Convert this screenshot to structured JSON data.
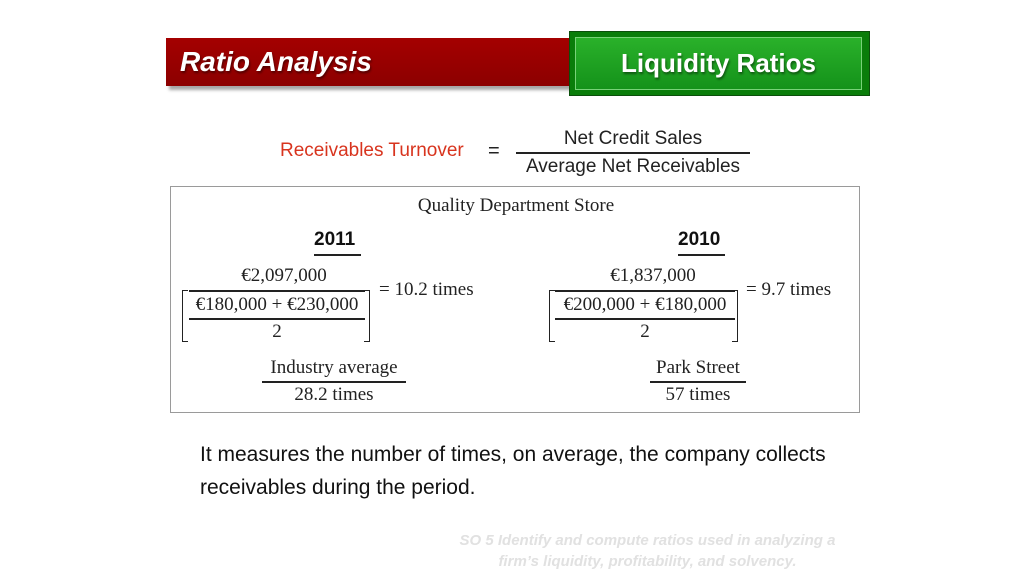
{
  "header": {
    "title": "Ratio Analysis",
    "section_tab": "Liquidity Ratios",
    "title_color": "#9a0000",
    "tab_color": "#1a9a1a"
  },
  "formula": {
    "label": "Receivables Turnover",
    "equals": "=",
    "numerator": "Net Credit Sales",
    "denominator": "Average Net Receivables",
    "label_color": "#d8341e"
  },
  "example": {
    "store_name": "Quality Department Store",
    "years": [
      {
        "year": "2011",
        "numerator": "€2,097,000",
        "denominator_sum": "€180,000 + €230,000",
        "divisor": "2",
        "result": "= 10.2 times"
      },
      {
        "year": "2010",
        "numerator": "€1,837,000",
        "denominator_sum": "€200,000 + €180,000",
        "divisor": "2",
        "result": "= 9.7 times"
      }
    ],
    "comparisons": [
      {
        "label": "Industry average",
        "value": "28.2 times"
      },
      {
        "label": "Park Street",
        "value": "57 times"
      }
    ]
  },
  "body_text": "It measures the number of times, on average, the company collects receivables during the period.",
  "footer": {
    "line1": "SO 5  Identify and compute ratios used in analyzing a",
    "line2": "firm’s liquidity, profitability, and solvency."
  }
}
